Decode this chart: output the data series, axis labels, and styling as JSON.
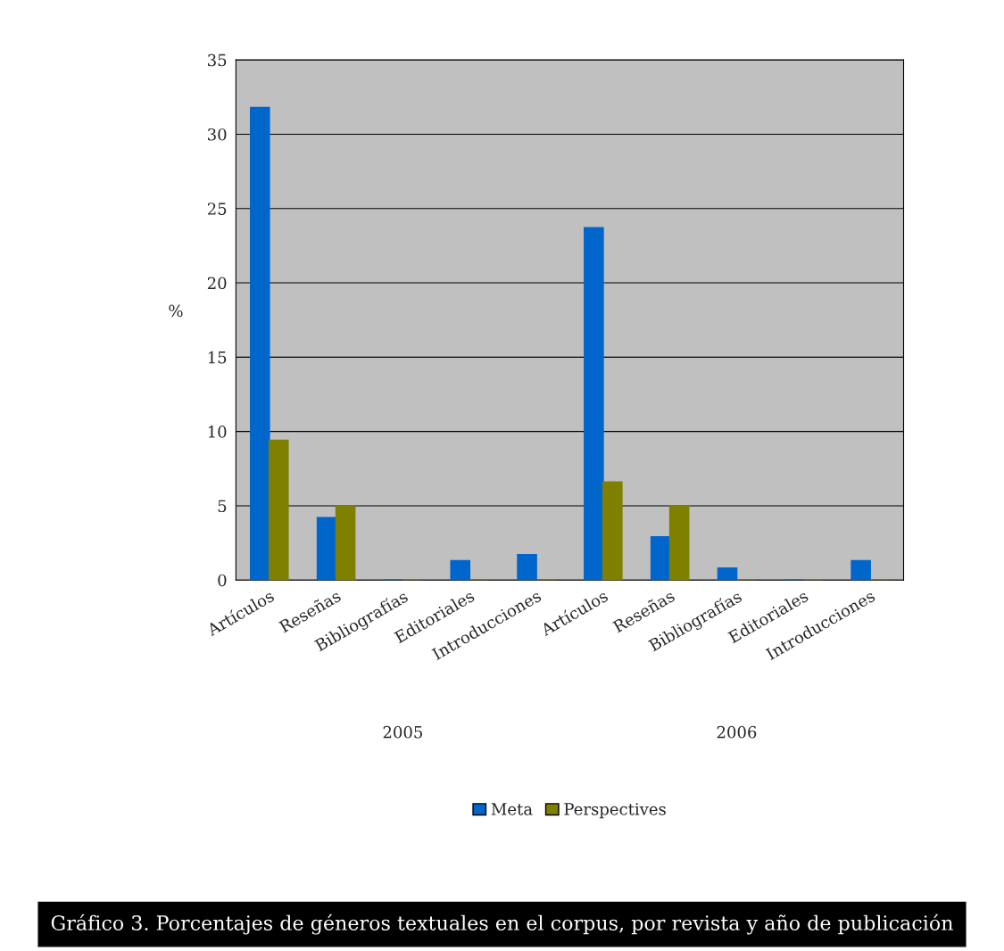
{
  "chart_data": {
    "type": "bar",
    "ylabel": "%",
    "categories": [
      "Artículos",
      "Reseñas",
      "Bibliografías",
      "Editoriales",
      "Introducciones",
      "Artículos",
      "Reseñas",
      "Bibliografías",
      "Editoriales",
      "Introducciones"
    ],
    "series": [
      {
        "name": "Meta",
        "color": "#0066cc",
        "values": [
          31.8,
          4.2,
          0,
          1.3,
          1.7,
          23.7,
          2.9,
          0.8,
          0,
          1.3
        ]
      },
      {
        "name": "Perspectives",
        "color": "#808000",
        "values": [
          9.4,
          5.0,
          0,
          0,
          0,
          6.6,
          5.0,
          0,
          0,
          0
        ]
      }
    ],
    "ylim": [
      0,
      35
    ],
    "yticks": [
      0,
      5,
      10,
      15,
      20,
      25,
      30,
      35
    ],
    "grid": "y",
    "legend": "bottom",
    "annotations": [
      "2005",
      "2006",
      "Gráfico 3. Porcentajes de géneros textuales en el corpus, por revista y año de publicación"
    ]
  }
}
